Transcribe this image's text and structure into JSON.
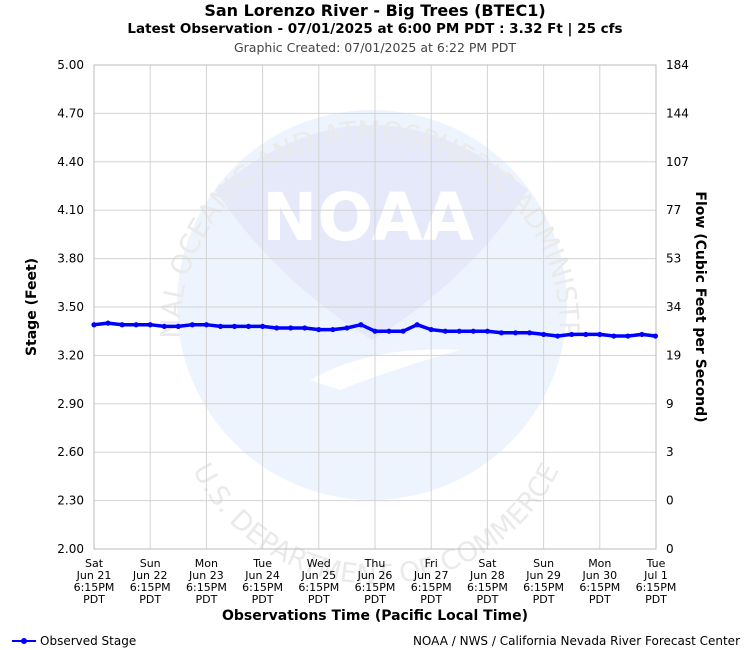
{
  "header": {
    "title": "San Lorenzo River - Big Trees (BTEC1)",
    "subtitle": "Latest Observation - 07/01/2025 at 6:00 PM PDT : 3.32 Ft | 25 cfs",
    "created": "Graphic Created: 07/01/2025 at 6:22 PM PDT"
  },
  "watermark": {
    "logo_text": "NOAA",
    "ring_top": "NATIONAL OCEANIC AND ATMOSPHERIC ADMINISTRATION",
    "ring_bottom": "U.S. DEPARTMENT OF COMMERCE"
  },
  "footer": {
    "legend_label": "Observed Stage",
    "credit": "NOAA / NWS / California Nevada River Forecast Center"
  },
  "colors": {
    "series": "#0000ff",
    "grid": "#d3d3d3",
    "watermark": "#e6ecfb"
  },
  "chart_data": {
    "type": "line",
    "title": "San Lorenzo River - Big Trees (BTEC1)",
    "xlabel": "Observations Time (Pacific Local Time)",
    "ylabel": "Stage (Feet)",
    "y2label": "Flow (Cubic Feet per Second)",
    "ylim": [
      2.0,
      5.0
    ],
    "grid": true,
    "legend": "bottom-left",
    "y_ticks": [
      "2.00",
      "2.30",
      "2.60",
      "2.90",
      "3.20",
      "3.50",
      "3.80",
      "4.10",
      "4.40",
      "4.70",
      "5.00"
    ],
    "y2_ticks": [
      "0",
      "0",
      "3",
      "9",
      "19",
      "34",
      "53",
      "77",
      "107",
      "144",
      "184"
    ],
    "x_ticks": [
      [
        "Sat",
        "Jun 21",
        "6:15PM",
        "PDT"
      ],
      [
        "Sun",
        "Jun 22",
        "6:15PM",
        "PDT"
      ],
      [
        "Mon",
        "Jun 23",
        "6:15PM",
        "PDT"
      ],
      [
        "Tue",
        "Jun 24",
        "6:15PM",
        "PDT"
      ],
      [
        "Wed",
        "Jun 25",
        "6:15PM",
        "PDT"
      ],
      [
        "Thu",
        "Jun 26",
        "6:15PM",
        "PDT"
      ],
      [
        "Fri",
        "Jun 27",
        "6:15PM",
        "PDT"
      ],
      [
        "Sat",
        "Jun 28",
        "6:15PM",
        "PDT"
      ],
      [
        "Sun",
        "Jun 29",
        "6:15PM",
        "PDT"
      ],
      [
        "Mon",
        "Jun 30",
        "6:15PM",
        "PDT"
      ],
      [
        "Tue",
        "Jul 1",
        "6:15PM",
        "PDT"
      ]
    ],
    "series": [
      {
        "name": "Observed Stage",
        "x": [
          "2025-06-21 18:15",
          "2025-06-22 00:15",
          "2025-06-22 06:15",
          "2025-06-22 12:15",
          "2025-06-22 18:15",
          "2025-06-23 00:15",
          "2025-06-23 06:15",
          "2025-06-23 12:15",
          "2025-06-23 18:15",
          "2025-06-24 00:15",
          "2025-06-24 06:15",
          "2025-06-24 12:15",
          "2025-06-24 18:15",
          "2025-06-25 00:15",
          "2025-06-25 06:15",
          "2025-06-25 12:15",
          "2025-06-25 18:15",
          "2025-06-26 00:15",
          "2025-06-26 06:15",
          "2025-06-26 12:15",
          "2025-06-26 18:15",
          "2025-06-27 00:15",
          "2025-06-27 06:15",
          "2025-06-27 12:15",
          "2025-06-27 18:15",
          "2025-06-28 00:15",
          "2025-06-28 06:15",
          "2025-06-28 12:15",
          "2025-06-28 18:15",
          "2025-06-29 00:15",
          "2025-06-29 06:15",
          "2025-06-29 12:15",
          "2025-06-29 18:15",
          "2025-06-30 00:15",
          "2025-06-30 06:15",
          "2025-06-30 12:15",
          "2025-06-30 18:15",
          "2025-07-01 00:15",
          "2025-07-01 06:15",
          "2025-07-01 12:15",
          "2025-07-01 18:00"
        ],
        "y": [
          3.39,
          3.4,
          3.39,
          3.39,
          3.39,
          3.38,
          3.38,
          3.39,
          3.39,
          3.38,
          3.38,
          3.38,
          3.38,
          3.37,
          3.37,
          3.37,
          3.36,
          3.36,
          3.37,
          3.39,
          3.35,
          3.35,
          3.35,
          3.39,
          3.36,
          3.35,
          3.35,
          3.35,
          3.35,
          3.34,
          3.34,
          3.34,
          3.33,
          3.32,
          3.33,
          3.33,
          3.33,
          3.32,
          3.32,
          3.33,
          3.32
        ]
      }
    ]
  }
}
